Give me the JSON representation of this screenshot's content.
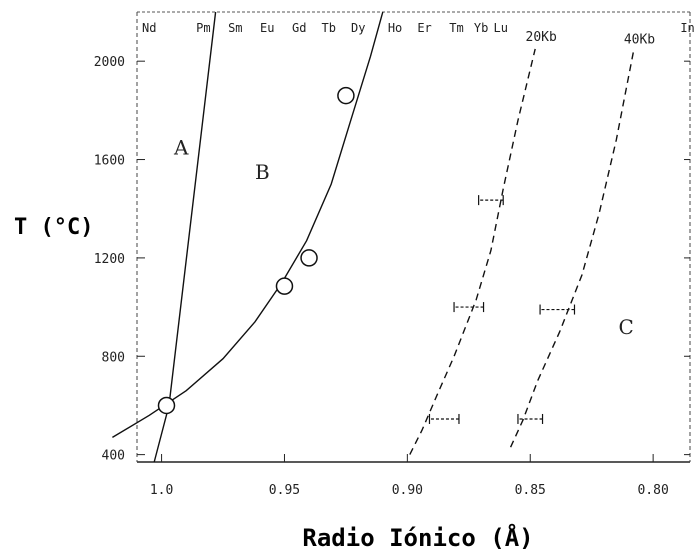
{
  "chart_data": {
    "type": "line",
    "xlabel": "Radio Iónico (Å)",
    "ylabel": "T (°C)",
    "x_reversed": true,
    "xlim": [
      1.01,
      0.785
    ],
    "ylim": [
      370,
      2200
    ],
    "xticks": [
      {
        "value": 1.0,
        "label": "1.0"
      },
      {
        "value": 0.95,
        "label": "0.95"
      },
      {
        "value": 0.9,
        "label": "0.90"
      },
      {
        "value": 0.85,
        "label": "0.85"
      },
      {
        "value": 0.8,
        "label": "0.80"
      }
    ],
    "yticks": [
      {
        "value": 400,
        "label": "400"
      },
      {
        "value": 800,
        "label": "800"
      },
      {
        "value": 1200,
        "label": "1200"
      },
      {
        "value": 1600,
        "label": "1600"
      },
      {
        "value": 2000,
        "label": "2000"
      }
    ],
    "top_axis_labels": [
      {
        "x": 1.005,
        "label": "Nd"
      },
      {
        "x": 0.983,
        "label": "Pm"
      },
      {
        "x": 0.97,
        "label": "Sm"
      },
      {
        "x": 0.957,
        "label": "Eu"
      },
      {
        "x": 0.944,
        "label": "Gd"
      },
      {
        "x": 0.932,
        "label": "Tb"
      },
      {
        "x": 0.92,
        "label": "Dy"
      },
      {
        "x": 0.905,
        "label": "Ho"
      },
      {
        "x": 0.893,
        "label": "Er"
      },
      {
        "x": 0.88,
        "label": "Tm"
      },
      {
        "x": 0.87,
        "label": "Yb"
      },
      {
        "x": 0.862,
        "label": "Lu"
      },
      {
        "x": 0.786,
        "label": "In"
      }
    ],
    "regions": [
      {
        "label": "A",
        "x": 0.992,
        "y": 1620
      },
      {
        "label": "B",
        "x": 0.959,
        "y": 1520
      },
      {
        "label": "C",
        "x": 0.811,
        "y": 890
      }
    ],
    "series": [
      {
        "style": "solid",
        "points": [
          [
            1.003,
            370
          ],
          [
            0.997,
            600
          ],
          [
            0.978,
            2200
          ]
        ]
      },
      {
        "style": "solid",
        "points": [
          [
            1.02,
            470
          ],
          [
            1.005,
            560
          ],
          [
            0.99,
            660
          ],
          [
            0.975,
            790
          ],
          [
            0.962,
            940
          ],
          [
            0.951,
            1100
          ],
          [
            0.941,
            1270
          ],
          [
            0.931,
            1500
          ],
          [
            0.923,
            1760
          ],
          [
            0.915,
            2020
          ],
          [
            0.91,
            2200
          ]
        ]
      },
      {
        "name": "20Kb",
        "style": "dashed",
        "points": [
          [
            0.899,
            400
          ],
          [
            0.894,
            500
          ],
          [
            0.888,
            640
          ],
          [
            0.881,
            800
          ],
          [
            0.872,
            1030
          ],
          [
            0.866,
            1230
          ],
          [
            0.861,
            1480
          ],
          [
            0.855,
            1760
          ],
          [
            0.848,
            2050
          ]
        ]
      },
      {
        "name": "40Kb",
        "style": "dashed",
        "points": [
          [
            0.858,
            430
          ],
          [
            0.853,
            540
          ],
          [
            0.847,
            700
          ],
          [
            0.838,
            900
          ],
          [
            0.829,
            1130
          ],
          [
            0.822,
            1380
          ],
          [
            0.815,
            1680
          ],
          [
            0.808,
            2040
          ]
        ]
      }
    ],
    "open_circles": [
      {
        "x": 0.998,
        "y": 600
      },
      {
        "x": 0.95,
        "y": 1085
      },
      {
        "x": 0.94,
        "y": 1200
      },
      {
        "x": 0.925,
        "y": 1860
      }
    ],
    "error_bars": [
      {
        "x": 0.885,
        "y": 545,
        "xerr": 0.006
      },
      {
        "x": 0.875,
        "y": 1000,
        "xerr": 0.006
      },
      {
        "x": 0.866,
        "y": 1435,
        "xerr": 0.005
      },
      {
        "x": 0.85,
        "y": 545,
        "xerr": 0.005
      },
      {
        "x": 0.839,
        "y": 990,
        "xerr": 0.007
      }
    ],
    "grid": false,
    "legend": "none"
  }
}
